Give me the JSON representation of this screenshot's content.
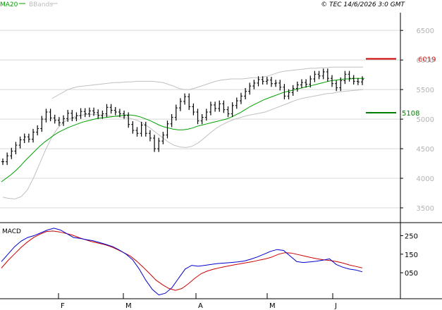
{
  "header": {
    "credit": "© TEC 14/6/2026 3:0 GMT",
    "legend_ma": "MA20",
    "legend_bb": "BBands"
  },
  "colors": {
    "price": "#000000",
    "ma": "#00a000",
    "bbands": "#c0c0c0",
    "resistance": "#cc0000",
    "support": "#008000",
    "macd": "#0000cc",
    "signal": "#cc0000",
    "grid": "#d8d8d8"
  },
  "chart_data": [
    {
      "type": "line",
      "title": "",
      "chart": "price",
      "ylim": [
        3250,
        6800
      ],
      "y_ticks": [
        3500,
        4000,
        4500,
        5000,
        5500,
        6000,
        6500
      ],
      "y_tick_labels": [
        "3500",
        "4000",
        "4500",
        "5000",
        "5500",
        "6000",
        "6500"
      ],
      "grid": true,
      "x_month_labels": [
        "F",
        "M",
        "A",
        "M",
        "J"
      ],
      "levels": [
        {
          "label": "6019",
          "value": 6019,
          "role": "resistance"
        },
        {
          "label": "5108",
          "value": 5108,
          "role": "support"
        }
      ],
      "series": [
        {
          "name": "MA20",
          "values": [
            3940,
            4000,
            4060,
            4130,
            4210,
            4300,
            4380,
            4460,
            4540,
            4610,
            4670,
            4730,
            4780,
            4820,
            4860,
            4890,
            4920,
            4950,
            4970,
            4990,
            5010,
            5020,
            5030,
            5040,
            5050,
            5060,
            5070,
            5070,
            5060,
            5040,
            5010,
            4980,
            4940,
            4900,
            4870,
            4850,
            4830,
            4820,
            4820,
            4830,
            4850,
            4880,
            4900,
            4920,
            4940,
            4960,
            4980,
            5000,
            5030,
            5070,
            5110,
            5160,
            5210,
            5250,
            5290,
            5330,
            5360,
            5390,
            5420,
            5450,
            5470,
            5490,
            5510,
            5530,
            5550,
            5570,
            5590,
            5610,
            5630,
            5650,
            5660,
            5670,
            5680,
            5680,
            5690,
            5690,
            5690
          ]
        },
        {
          "name": "BBands",
          "values": [
            3680,
            3660,
            3650,
            3690,
            3800,
            4000,
            4240,
            4480,
            4690,
            4850,
            4950,
            5010,
            5050,
            5070,
            5080,
            5080,
            5070,
            5060,
            5050,
            5040,
            5030,
            5010,
            4980,
            4930,
            4860,
            4780,
            4700,
            4620,
            4560,
            4530,
            4520,
            4540,
            4600,
            4680,
            4770,
            4850,
            4910,
            4960,
            5000,
            5030,
            5060,
            5080,
            5100,
            5120,
            5160,
            5200,
            5240,
            5280,
            5320,
            5350,
            5370,
            5390,
            5410,
            5430,
            5440,
            5460,
            5470,
            5480,
            5490,
            5500
          ]
        },
        {
          "name": "",
          "values": [
            5350,
            5400,
            5450,
            5500,
            5530,
            5550,
            5560,
            5570,
            5580,
            5590,
            5600,
            5610,
            5620,
            5620,
            5630,
            5630,
            5640,
            5640,
            5640,
            5640,
            5630,
            5620,
            5590,
            5560,
            5520,
            5500,
            5500,
            5520,
            5550,
            5580,
            5610,
            5640,
            5660,
            5670,
            5680,
            5680,
            5680,
            5690,
            5700,
            5700,
            5710,
            5730,
            5760,
            5790,
            5810,
            5820,
            5830,
            5840,
            5850,
            5860,
            5860,
            5870,
            5870,
            5880,
            5880,
            5880,
            5880,
            5880,
            5880,
            5880
          ]
        },
        {
          "name": "",
          "values": [
            4280,
            4380,
            4460,
            4560,
            4650,
            4700,
            4660,
            4780,
            4840,
            5000,
            5120,
            5020,
            4980,
            4940,
            5010,
            5100,
            5020,
            5060,
            5130,
            5090,
            5140,
            5110,
            5060,
            5090,
            5200,
            5150,
            5120,
            5090,
            5060,
            4910,
            4810,
            4760,
            4900,
            4760,
            4680,
            4500,
            4630,
            4730,
            4920,
            5030,
            5190,
            5300,
            5380,
            5210,
            5120,
            4970,
            5030,
            5120,
            5240,
            5180,
            5260,
            5160,
            5090,
            5230,
            5310,
            5390,
            5470,
            5560,
            5610,
            5670,
            5640,
            5660,
            5600,
            5610,
            5540,
            5390,
            5450,
            5520,
            5580,
            5620,
            5590,
            5680,
            5760,
            5730,
            5800,
            5690,
            5600,
            5530,
            5650,
            5760,
            5690,
            5640,
            5630,
            5670
          ]
        }
      ]
    },
    {
      "type": "line",
      "title": "MACD",
      "chart": "macd",
      "ylim": [
        -90,
        320
      ],
      "y_ticks": [
        50,
        150,
        250
      ],
      "y_tick_labels": [
        "050",
        "150",
        "250"
      ],
      "grid": false,
      "series": [
        {
          "name": "",
          "values": [
            110,
            150,
            190,
            220,
            240,
            250,
            265,
            280,
            290,
            280,
            260,
            240,
            235,
            228,
            222,
            212,
            202,
            190,
            172,
            150,
            120,
            70,
            10,
            -40,
            -70,
            -60,
            -30,
            20,
            70,
            90,
            85,
            90,
            95,
            100,
            102,
            105,
            108,
            113,
            123,
            135,
            150,
            165,
            175,
            170,
            140,
            110,
            105,
            108,
            112,
            118,
            125,
            95,
            80,
            70,
            65,
            55
          ]
        },
        {
          "name": "",
          "values": [
            75,
            115,
            150,
            185,
            215,
            240,
            258,
            272,
            275,
            270,
            262,
            253,
            240,
            228,
            218,
            210,
            202,
            190,
            175,
            158,
            140,
            112,
            80,
            45,
            10,
            -15,
            -35,
            -45,
            -35,
            -10,
            20,
            45,
            60,
            70,
            78,
            85,
            92,
            98,
            104,
            110,
            118,
            125,
            135,
            150,
            158,
            156,
            148,
            140,
            132,
            125,
            120,
            116,
            110,
            102,
            92,
            84,
            76
          ]
        }
      ]
    }
  ]
}
